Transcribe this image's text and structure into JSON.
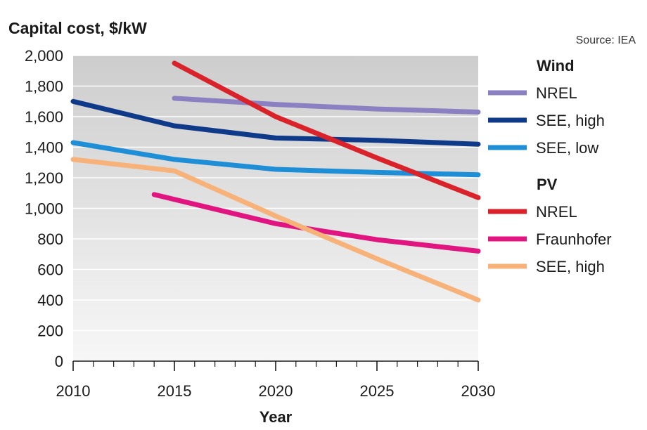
{
  "chart_data": {
    "type": "line",
    "title": "Capital cost, $/kW",
    "source": "Source: IEA",
    "xlabel": "Year",
    "ylabel": "",
    "xlim": [
      2010,
      2030
    ],
    "ylim": [
      0,
      2000
    ],
    "x_ticks": [
      "2010",
      "2015",
      "2020",
      "2025",
      "2030"
    ],
    "y_ticks": [
      "0",
      "200",
      "400",
      "600",
      "800",
      "1,000",
      "1,200",
      "1,400",
      "1,600",
      "1,800",
      "2,000"
    ],
    "legend_position": "right",
    "groups": [
      {
        "name": "Wind",
        "series": [
          {
            "name": "NREL",
            "color": "#8a80c2",
            "points": [
              [
                2015,
                1720
              ],
              [
                2020,
                1680
              ],
              [
                2025,
                1650
              ],
              [
                2030,
                1630
              ]
            ]
          },
          {
            "name": "SEE, high",
            "color": "#0f3a8a",
            "points": [
              [
                2010,
                1700
              ],
              [
                2015,
                1540
              ],
              [
                2020,
                1460
              ],
              [
                2025,
                1445
              ],
              [
                2030,
                1420
              ]
            ]
          },
          {
            "name": "SEE, low",
            "color": "#1e8fd6",
            "points": [
              [
                2010,
                1430
              ],
              [
                2015,
                1320
              ],
              [
                2020,
                1255
              ],
              [
                2025,
                1235
              ],
              [
                2030,
                1220
              ]
            ]
          }
        ]
      },
      {
        "name": "PV",
        "series": [
          {
            "name": "NREL",
            "color": "#d9222a",
            "points": [
              [
                2015,
                1950
              ],
              [
                2020,
                1600
              ],
              [
                2025,
                1330
              ],
              [
                2030,
                1070
              ]
            ]
          },
          {
            "name": "Fraunhofer",
            "color": "#e0157f",
            "points": [
              [
                2014,
                1090
              ],
              [
                2020,
                900
              ],
              [
                2025,
                795
              ],
              [
                2030,
                720
              ]
            ]
          },
          {
            "name": "SEE, high",
            "color": "#f7b27a",
            "points": [
              [
                2010,
                1320
              ],
              [
                2015,
                1245
              ],
              [
                2020,
                950
              ],
              [
                2025,
                670
              ],
              [
                2030,
                400
              ]
            ]
          }
        ]
      }
    ]
  }
}
